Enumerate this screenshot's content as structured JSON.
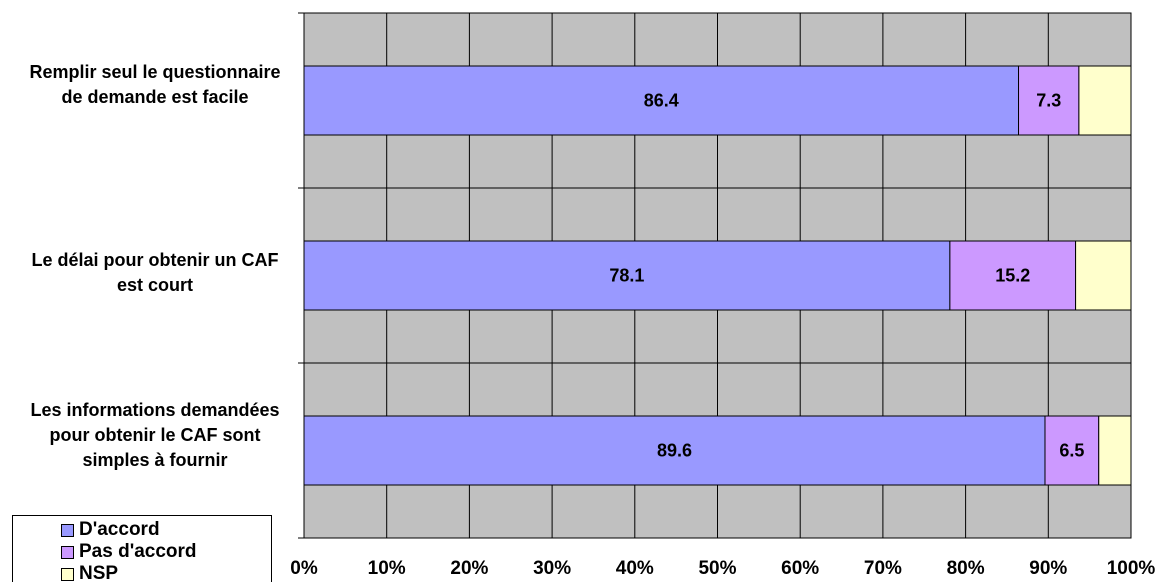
{
  "chart_data": {
    "type": "bar",
    "orientation": "horizontal",
    "stacked": true,
    "categories": [
      "Remplir seul le questionnaire de demande est facile",
      "Le délai pour obtenir un CAF est court",
      "Les informations demandées pour obtenir le CAF sont simples à fournir"
    ],
    "series": [
      {
        "name": "D'accord",
        "values": [
          86.4,
          78.1,
          89.6
        ],
        "color": "#9999FF",
        "labels": [
          "86.4",
          "78.1",
          "89.6"
        ]
      },
      {
        "name": "Pas d'accord",
        "values": [
          7.3,
          15.2,
          6.5
        ],
        "color": "#CC99FF",
        "labels": [
          "7.3",
          "15.2",
          "6.5"
        ]
      },
      {
        "name": "NSP",
        "values": [
          6.3,
          6.7,
          3.9
        ],
        "color": "#FFFFCC",
        "labels": [
          "",
          "",
          ""
        ]
      }
    ],
    "xlim": [
      0,
      100
    ],
    "xticks": [
      "0%",
      "10%",
      "20%",
      "30%",
      "40%",
      "50%",
      "60%",
      "70%",
      "80%",
      "90%",
      "100%"
    ],
    "grid": true,
    "plot_background": "#C0C0C0",
    "legend_position": "bottom-left"
  }
}
